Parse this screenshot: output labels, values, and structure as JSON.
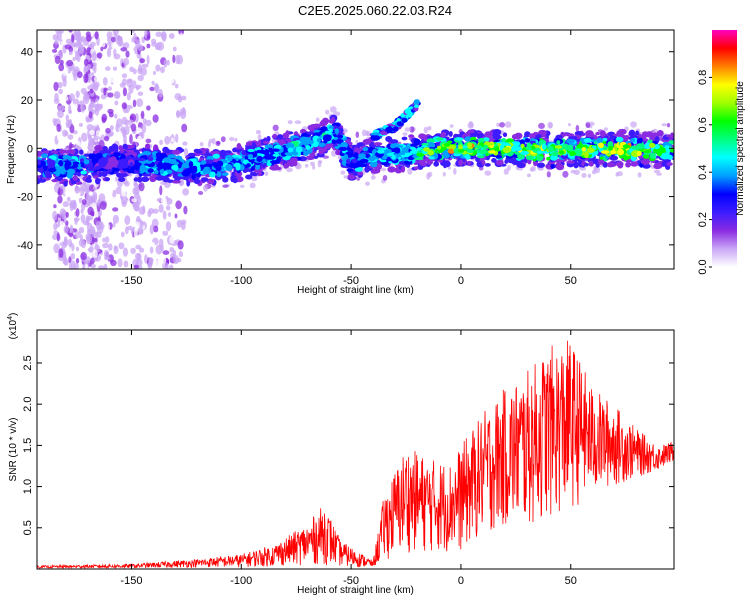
{
  "title": "C2E5.2025.060.22.03.R24",
  "chart_data": [
    {
      "type": "heatmap",
      "xlabel": "Height of straight line (km)",
      "ylabel": "Frequency (Hz)",
      "xlim": [
        -193,
        97
      ],
      "ylim": [
        -50,
        49
      ],
      "xticks": [
        -150,
        -100,
        -50,
        0,
        50
      ],
      "yticks": [
        -40,
        -20,
        0,
        20,
        40
      ],
      "colorbar": {
        "label": "Normalized spectral amplitude",
        "range": [
          0,
          1
        ],
        "ticks": [
          "0.0",
          "0.2",
          "0.4",
          "0.6",
          "0.8"
        ],
        "colors": [
          "#ffffff",
          "#c9a6f5",
          "#8a2be2",
          "#3c1cff",
          "#0000ff",
          "#00a0ff",
          "#00ffff",
          "#00ff80",
          "#00ff00",
          "#a0ff00",
          "#ffff00",
          "#ff8000",
          "#ff0000",
          "#ff00c0"
        ]
      },
      "ridge": [
        {
          "x": -190,
          "y": -7,
          "amp": 0.35
        },
        {
          "x": -175,
          "y": -8,
          "amp": 0.45
        },
        {
          "x": -160,
          "y": -6,
          "amp": 0.2
        },
        {
          "x": -140,
          "y": -6,
          "amp": 0.4
        },
        {
          "x": -120,
          "y": -8,
          "amp": 0.45
        },
        {
          "x": -100,
          "y": -6,
          "amp": 0.45
        },
        {
          "x": -85,
          "y": -2,
          "amp": 0.45
        },
        {
          "x": -70,
          "y": 2,
          "amp": 0.5
        },
        {
          "x": -57,
          "y": 6,
          "amp": 0.5
        },
        {
          "x": -50,
          "y": -6,
          "amp": 0.35
        },
        {
          "x": -40,
          "y": -3,
          "amp": 0.45
        },
        {
          "x": -25,
          "y": -2,
          "amp": 0.45
        },
        {
          "x": -10,
          "y": 0,
          "amp": 0.85
        },
        {
          "x": 20,
          "y": 0,
          "amp": 0.75
        },
        {
          "x": 50,
          "y": -1,
          "amp": 0.7
        },
        {
          "x": 75,
          "y": 0,
          "amp": 0.8
        },
        {
          "x": 95,
          "y": -1,
          "amp": 0.6
        }
      ],
      "branch": [
        {
          "x": -40,
          "y": 5
        },
        {
          "x": -30,
          "y": 9
        },
        {
          "x": -20,
          "y": 18
        }
      ]
    },
    {
      "type": "line",
      "xlabel": "Height of straight line (km)",
      "ylabel": "SNR (10 * v/v)",
      "y_multiplier": "(x10^4)",
      "y_multiplier_base": "(x10",
      "y_multiplier_exp": "4",
      "xlim": [
        -193,
        97
      ],
      "ylim": [
        0,
        2.9
      ],
      "xticks": [
        -150,
        -100,
        -50,
        0,
        50
      ],
      "yticks": [
        0.5,
        1.0,
        1.5,
        2.0,
        2.5
      ],
      "color": "#ff0000",
      "envelope": {
        "x": [
          -193,
          -150,
          -120,
          -100,
          -85,
          -70,
          -62,
          -55,
          -40,
          -35,
          -25,
          -15,
          -5,
          0,
          10,
          20,
          30,
          40,
          50,
          60,
          70,
          80,
          90,
          97
        ],
        "y_high": [
          0.04,
          0.06,
          0.12,
          0.18,
          0.3,
          0.55,
          0.8,
          0.35,
          0.1,
          0.9,
          1.5,
          1.35,
          1.3,
          1.5,
          1.9,
          2.2,
          2.4,
          2.7,
          2.8,
          2.2,
          2.0,
          1.7,
          1.5,
          1.55
        ],
        "y_low": [
          0.01,
          0.01,
          0.02,
          0.02,
          0.03,
          0.05,
          0.05,
          0.03,
          0.02,
          0.1,
          0.2,
          0.2,
          0.2,
          0.2,
          0.4,
          0.5,
          0.5,
          0.6,
          0.7,
          0.9,
          1.0,
          1.1,
          1.2,
          1.3
        ]
      }
    }
  ]
}
